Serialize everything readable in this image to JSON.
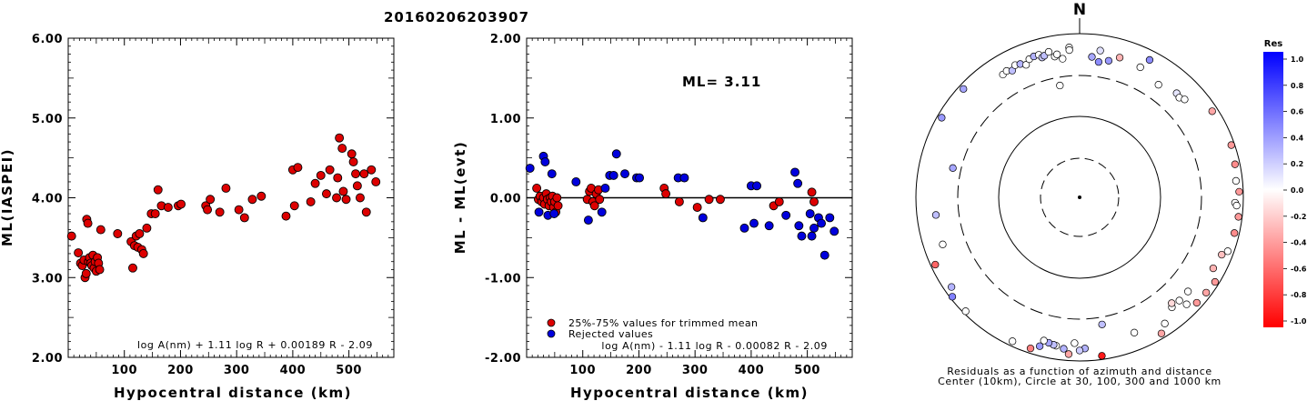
{
  "title": "20160206203907",
  "colors": {
    "red": "#dd0000",
    "blue": "#0000dd",
    "axis": "#000000"
  },
  "chart_data": [
    {
      "type": "scatter",
      "name": "ml-vs-distance",
      "xlabel": "Hypocentral distance (km)",
      "ylabel": "ML(IASPEI)",
      "xlim": [
        0,
        580
      ],
      "ylim": [
        2.0,
        6.0
      ],
      "x_ticks": [
        100,
        200,
        300,
        400,
        500
      ],
      "y_ticks": [
        "6.00",
        "5.00",
        "4.00",
        "3.00",
        "2.00"
      ],
      "formula": "log A(nm) + 1.11 log R + 0.00189 R - 2.09",
      "points": [
        [
          6,
          3.52
        ],
        [
          18,
          3.31
        ],
        [
          22,
          3.18
        ],
        [
          25,
          3.15
        ],
        [
          28,
          3.22
        ],
        [
          30,
          3.0
        ],
        [
          32,
          3.05
        ],
        [
          33,
          3.73
        ],
        [
          35,
          3.68
        ],
        [
          36,
          3.2
        ],
        [
          38,
          3.25
        ],
        [
          40,
          3.18
        ],
        [
          42,
          3.15
        ],
        [
          44,
          3.28
        ],
        [
          46,
          3.12
        ],
        [
          48,
          3.2
        ],
        [
          50,
          3.08
        ],
        [
          52,
          3.25
        ],
        [
          54,
          3.18
        ],
        [
          56,
          3.1
        ],
        [
          58,
          3.6
        ],
        [
          88,
          3.55
        ],
        [
          112,
          3.45
        ],
        [
          115,
          3.12
        ],
        [
          118,
          3.4
        ],
        [
          121,
          3.52
        ],
        [
          124,
          3.38
        ],
        [
          127,
          3.55
        ],
        [
          131,
          3.35
        ],
        [
          134,
          3.3
        ],
        [
          140,
          3.62
        ],
        [
          148,
          3.8
        ],
        [
          155,
          3.8
        ],
        [
          160,
          4.1
        ],
        [
          166,
          3.9
        ],
        [
          178,
          3.88
        ],
        [
          196,
          3.9
        ],
        [
          201,
          3.92
        ],
        [
          245,
          3.9
        ],
        [
          248,
          3.85
        ],
        [
          253,
          3.98
        ],
        [
          270,
          3.82
        ],
        [
          281,
          4.12
        ],
        [
          304,
          3.85
        ],
        [
          314,
          3.75
        ],
        [
          328,
          3.98
        ],
        [
          344,
          4.02
        ],
        [
          388,
          3.77
        ],
        [
          400,
          4.35
        ],
        [
          403,
          3.9
        ],
        [
          409,
          4.38
        ],
        [
          432,
          3.95
        ],
        [
          440,
          4.18
        ],
        [
          450,
          4.28
        ],
        [
          460,
          4.05
        ],
        [
          466,
          4.35
        ],
        [
          478,
          4.0
        ],
        [
          480,
          4.25
        ],
        [
          483,
          4.75
        ],
        [
          488,
          4.62
        ],
        [
          490,
          4.08
        ],
        [
          495,
          3.98
        ],
        [
          505,
          4.55
        ],
        [
          508,
          4.45
        ],
        [
          512,
          4.3
        ],
        [
          515,
          4.15
        ],
        [
          520,
          4.0
        ],
        [
          527,
          4.3
        ],
        [
          531,
          3.82
        ],
        [
          540,
          4.35
        ],
        [
          548,
          4.2
        ]
      ]
    },
    {
      "type": "scatter",
      "name": "residual-vs-distance",
      "xlabel": "Hypocentral distance (km)",
      "ylabel": "ML - ML(evt)",
      "xlim": [
        0,
        580
      ],
      "ylim": [
        -2.0,
        2.0
      ],
      "x_ticks": [
        100,
        200,
        300,
        400,
        500
      ],
      "y_ticks": [
        "2.00",
        "1.00",
        "0.00",
        "-1.00",
        "-2.00"
      ],
      "annotation": "ML= 3.11",
      "formula": "log A(nm) - 1.11 log R - 0.00082 R - 2.09",
      "legend": {
        "placement": "bottom-left",
        "items": [
          {
            "label": "25%-75% values for trimmed mean",
            "color": "#dd0000"
          },
          {
            "label": "Rejected values",
            "color": "#0000dd"
          }
        ]
      },
      "series": [
        {
          "color_key": "red",
          "points": [
            [
              18,
              0.12
            ],
            [
              21,
              -0.02
            ],
            [
              24,
              0.02
            ],
            [
              27,
              -0.05
            ],
            [
              30,
              0.0
            ],
            [
              32,
              -0.08
            ],
            [
              35,
              0.05
            ],
            [
              37,
              -0.02
            ],
            [
              40,
              -0.1
            ],
            [
              42,
              0.0
            ],
            [
              44,
              -0.05
            ],
            [
              46,
              0.02
            ],
            [
              48,
              -0.12
            ],
            [
              50,
              -0.05
            ],
            [
              52,
              -0.18
            ],
            [
              54,
              0.0
            ],
            [
              56,
              -0.1
            ],
            [
              108,
              -0.02
            ],
            [
              112,
              0.08
            ],
            [
              115,
              0.12
            ],
            [
              118,
              -0.05
            ],
            [
              121,
              -0.1
            ],
            [
              124,
              0.05
            ],
            [
              128,
              0.1
            ],
            [
              130,
              -0.02
            ],
            [
              245,
              0.12
            ],
            [
              248,
              0.05
            ],
            [
              272,
              -0.05
            ],
            [
              304,
              -0.12
            ],
            [
              325,
              -0.02
            ],
            [
              345,
              -0.02
            ],
            [
              440,
              -0.1
            ],
            [
              450,
              -0.05
            ],
            [
              508,
              0.07
            ],
            [
              512,
              -0.05
            ]
          ]
        },
        {
          "color_key": "blue",
          "points": [
            [
              6,
              0.37
            ],
            [
              22,
              -0.18
            ],
            [
              30,
              0.52
            ],
            [
              33,
              0.45
            ],
            [
              38,
              -0.22
            ],
            [
              45,
              0.3
            ],
            [
              49,
              -0.2
            ],
            [
              88,
              0.2
            ],
            [
              110,
              -0.28
            ],
            [
              134,
              -0.18
            ],
            [
              140,
              0.12
            ],
            [
              148,
              0.28
            ],
            [
              155,
              0.28
            ],
            [
              160,
              0.55
            ],
            [
              175,
              0.3
            ],
            [
              196,
              0.25
            ],
            [
              201,
              0.25
            ],
            [
              270,
              0.25
            ],
            [
              281,
              0.25
            ],
            [
              314,
              -0.25
            ],
            [
              388,
              -0.38
            ],
            [
              400,
              0.15
            ],
            [
              405,
              -0.32
            ],
            [
              410,
              0.15
            ],
            [
              432,
              -0.35
            ],
            [
              462,
              -0.22
            ],
            [
              478,
              0.32
            ],
            [
              483,
              0.18
            ],
            [
              485,
              -0.35
            ],
            [
              490,
              -0.48
            ],
            [
              505,
              -0.2
            ],
            [
              508,
              -0.48
            ],
            [
              512,
              -0.38
            ],
            [
              520,
              -0.25
            ],
            [
              525,
              -0.32
            ],
            [
              531,
              -0.72
            ],
            [
              540,
              -0.25
            ],
            [
              548,
              -0.42
            ]
          ]
        }
      ]
    },
    {
      "type": "scatter",
      "name": "residual-map",
      "north_label": "N",
      "caption_lines": [
        "Residuals as a function of azimuth and distance",
        "Center (10km), Circle at 30, 100, 300 and 1000 km"
      ],
      "rings_km": [
        30,
        100,
        300,
        1000
      ],
      "colorbar": {
        "title": "Res",
        "ticks": [
          "1.0",
          "0.8",
          "0.6",
          "0.4",
          "0.2",
          "0.0",
          "-0.2",
          "-0.4",
          "-0.6",
          "-0.8",
          "-1.0"
        ]
      },
      "stations": [
        {
          "az": 356,
          "dist": 680,
          "res": 0.0
        },
        {
          "az": 8,
          "dist": 640,
          "res": 0.12
        },
        {
          "az": 27,
          "dist": 760,
          "res": 0.45
        },
        {
          "az": 43,
          "dist": 540,
          "res": 0.1
        },
        {
          "az": 45,
          "dist": 520,
          "res": 0.0
        },
        {
          "az": 47,
          "dist": 560,
          "res": 0.0
        },
        {
          "az": 57,
          "dist": 850,
          "res": -0.35
        },
        {
          "az": 71,
          "dist": 910,
          "res": -0.4
        },
        {
          "az": 78,
          "dist": 870,
          "res": -0.45
        },
        {
          "az": 84,
          "dist": 830,
          "res": 0.0
        },
        {
          "az": 88,
          "dist": 890,
          "res": -0.4
        },
        {
          "az": 92,
          "dist": 790,
          "res": 0.0
        },
        {
          "az": 93,
          "dist": 830,
          "res": 0.0
        },
        {
          "az": 97,
          "dist": 900,
          "res": -0.4
        },
        {
          "az": 103,
          "dist": 870,
          "res": -0.45
        },
        {
          "az": 110,
          "dist": 840,
          "res": 0.0
        },
        {
          "az": 112,
          "dist": 740,
          "res": -0.25
        },
        {
          "az": 118,
          "dist": 700,
          "res": -0.3
        },
        {
          "az": 122,
          "dist": 890,
          "res": -0.4
        },
        {
          "az": 127,
          "dist": 860,
          "res": -0.35
        },
        {
          "az": 132,
          "dist": 840,
          "res": -0.4
        },
        {
          "az": 131,
          "dist": 560,
          "res": 0.0
        },
        {
          "az": 136,
          "dist": 560,
          "res": 0.0
        },
        {
          "az": 135,
          "dist": 700,
          "res": 0.0
        },
        {
          "az": 140,
          "dist": 560,
          "res": 0.0
        },
        {
          "az": 139,
          "dist": 510,
          "res": -0.15
        },
        {
          "az": 146,
          "dist": 720,
          "res": 0.0
        },
        {
          "az": 149,
          "dist": 870,
          "res": -0.35
        },
        {
          "az": 158,
          "dist": 600,
          "res": 0.0
        },
        {
          "az": 170,
          "dist": 370,
          "res": 0.25
        },
        {
          "az": 172,
          "dist": 900,
          "res": -0.9
        },
        {
          "az": 178,
          "dist": 700,
          "res": 0.3
        },
        {
          "az": 180,
          "dist": 740,
          "res": 0.2
        },
        {
          "az": 182,
          "dist": 600,
          "res": 0.0
        },
        {
          "az": 184,
          "dist": 830,
          "res": -0.35
        },
        {
          "az": 186,
          "dist": 720,
          "res": 0.3
        },
        {
          "az": 189,
          "dist": 680,
          "res": 0.0
        },
        {
          "az": 190,
          "dist": 670,
          "res": 0.25
        },
        {
          "az": 192,
          "dist": 650,
          "res": 0.35
        },
        {
          "az": 194,
          "dist": 630,
          "res": 0.0
        },
        {
          "az": 195,
          "dist": 760,
          "res": 0.4
        },
        {
          "az": 198,
          "dist": 870,
          "res": -0.5
        },
        {
          "az": 205,
          "dist": 870,
          "res": 0.0
        },
        {
          "az": 225,
          "dist": 930,
          "res": 0.0
        },
        {
          "az": 232,
          "dist": 940,
          "res": 0.5
        },
        {
          "az": 235,
          "dist": 810,
          "res": 0.3
        },
        {
          "az": 245,
          "dist": 880,
          "res": -0.6
        },
        {
          "az": 251,
          "dist": 580,
          "res": 0.0
        },
        {
          "az": 263,
          "dist": 580,
          "res": 0.25
        },
        {
          "az": 283,
          "dist": 380,
          "res": 0.35
        },
        {
          "az": 300,
          "dist": 880,
          "res": 0.4
        },
        {
          "az": 313,
          "dist": 870,
          "res": 0.35
        },
        {
          "az": 328,
          "dist": 580,
          "res": 0.0
        },
        {
          "az": 330,
          "dist": 600,
          "res": 0.0
        },
        {
          "az": 332,
          "dist": 560,
          "res": 0.25
        },
        {
          "az": 334,
          "dist": 620,
          "res": 0.0
        },
        {
          "az": 336,
          "dist": 600,
          "res": 0.3
        },
        {
          "az": 338,
          "dist": 550,
          "res": 0.0
        },
        {
          "az": 340,
          "dist": 620,
          "res": 0.0
        },
        {
          "az": 342,
          "dist": 640,
          "res": 0.3
        },
        {
          "az": 344,
          "dist": 640,
          "res": 0.0
        },
        {
          "az": 345,
          "dist": 580,
          "res": 0.2
        },
        {
          "az": 346,
          "dist": 600,
          "res": 0.25
        },
        {
          "az": 348,
          "dist": 650,
          "res": 0.0
        },
        {
          "az": 350,
          "dist": 550,
          "res": 0.0
        },
        {
          "az": 351,
          "dist": 580,
          "res": 0.0
        },
        {
          "az": 353,
          "dist": 500,
          "res": 0.0
        },
        {
          "az": 356,
          "dist": 630,
          "res": 0.0
        },
        {
          "az": 5,
          "dist": 520,
          "res": 0.35
        },
        {
          "az": 8,
          "dist": 460,
          "res": 0.45
        },
        {
          "az": 12,
          "dist": 500,
          "res": 0.4
        },
        {
          "az": 16,
          "dist": 590,
          "res": -0.3
        },
        {
          "az": 25,
          "dist": 560,
          "res": 0.0
        },
        {
          "az": 35,
          "dist": 470,
          "res": 0.0
        },
        {
          "az": 350,
          "dist": 240,
          "res": 0.0
        }
      ]
    }
  ]
}
